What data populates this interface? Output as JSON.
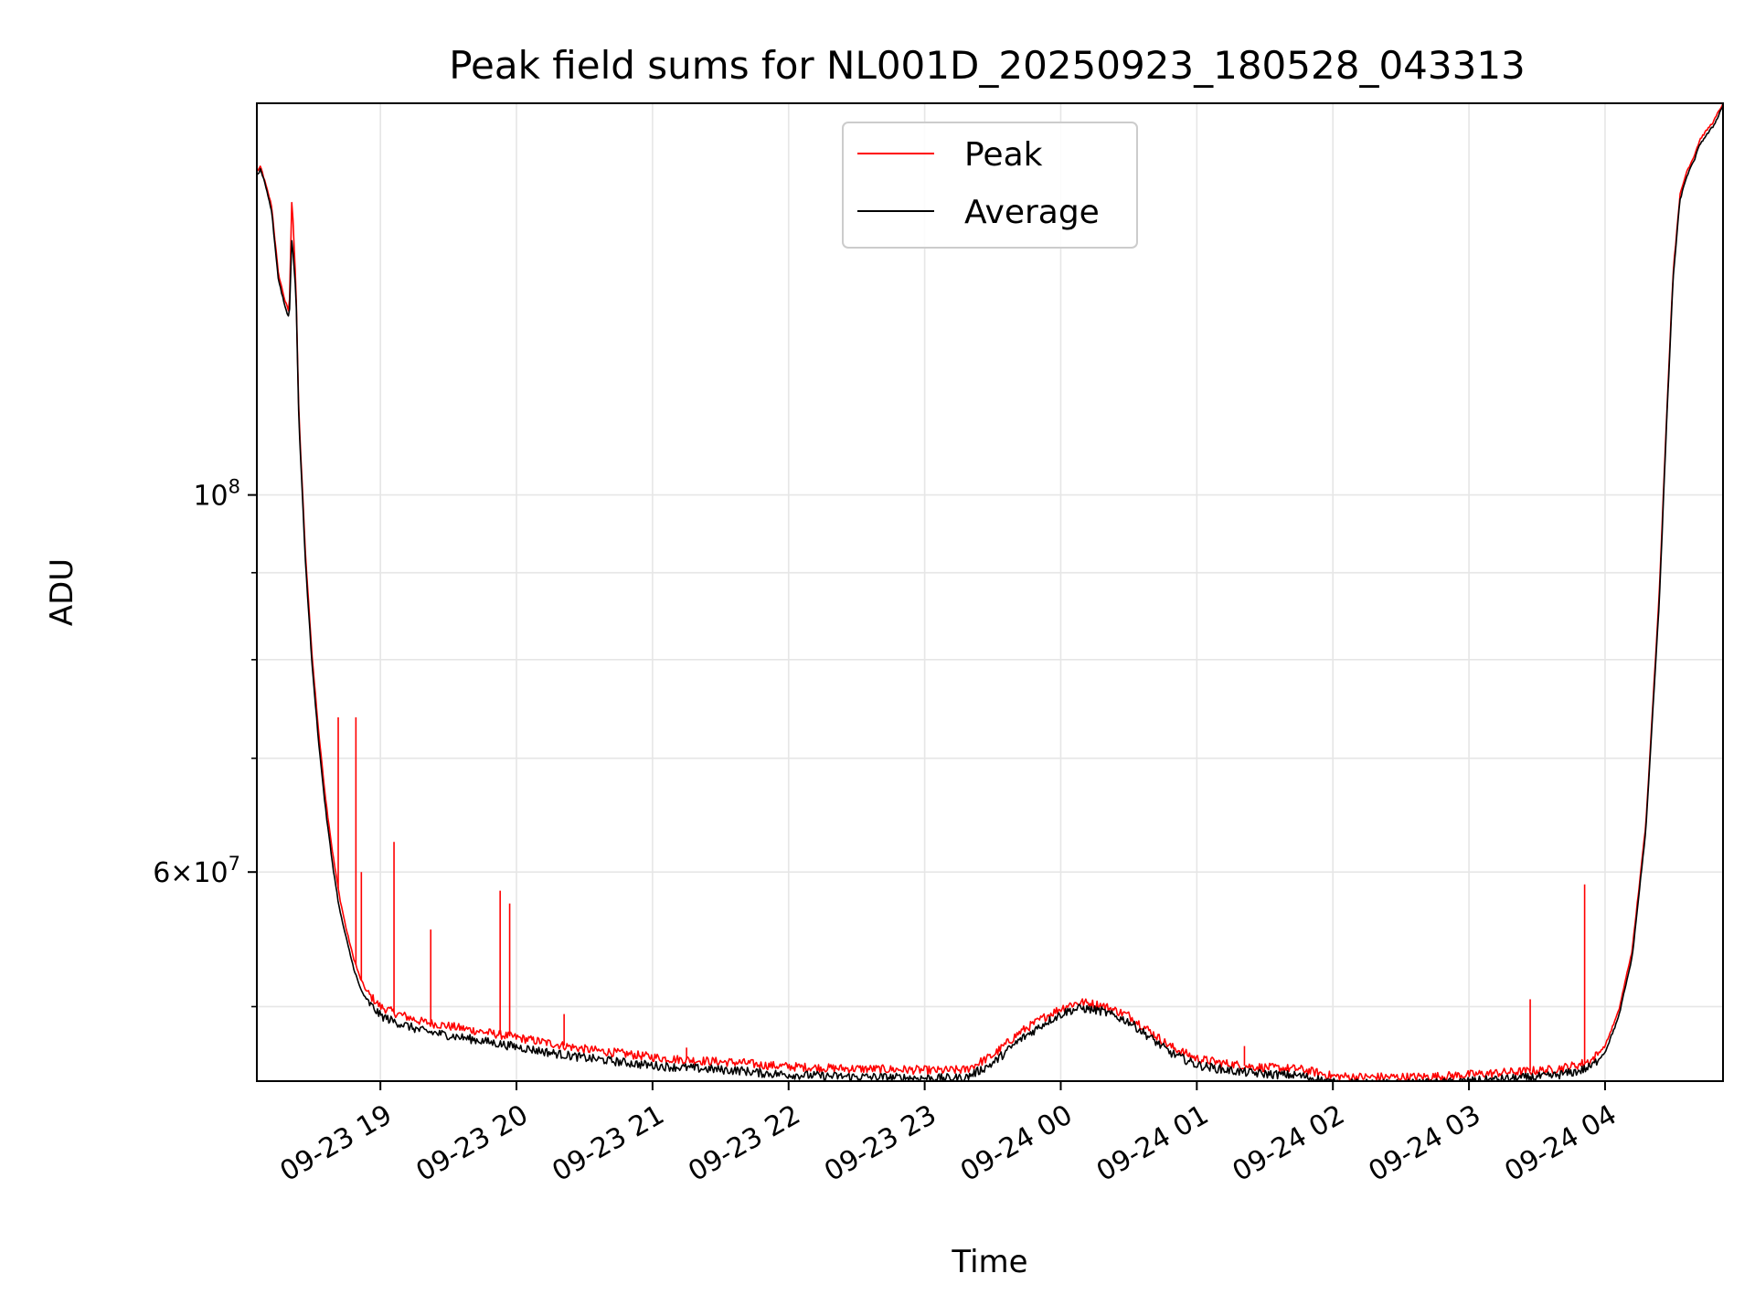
{
  "chart_data": {
    "type": "line",
    "title": "Peak field sums for NL001D_20250923_180528_043313",
    "xlabel": "Time",
    "ylabel": "ADU",
    "yscale": "log",
    "xlim": [
      18.092,
      28.867
    ],
    "ylim": [
      45200000,
      170000000
    ],
    "x_unit": "hours since 2025-09-23 00:00",
    "x_ticks": [
      {
        "value": 19,
        "label": "09-23 19"
      },
      {
        "value": 20,
        "label": "09-23 20"
      },
      {
        "value": 21,
        "label": "09-23 21"
      },
      {
        "value": 22,
        "label": "09-23 22"
      },
      {
        "value": 23,
        "label": "09-23 23"
      },
      {
        "value": 24,
        "label": "09-24 00"
      },
      {
        "value": 25,
        "label": "09-24 01"
      },
      {
        "value": 26,
        "label": "09-24 02"
      },
      {
        "value": 27,
        "label": "09-24 03"
      },
      {
        "value": 28,
        "label": "09-24 04"
      }
    ],
    "y_major_ticks": [
      {
        "value": 100000000,
        "base": "10",
        "exp": "8"
      },
      {
        "value": 60000000,
        "coef": "6",
        "base": "10",
        "exp": "7"
      }
    ],
    "y_minor_ticks": [
      50000000,
      70000000,
      80000000,
      90000000
    ],
    "grid": true,
    "legend_position": "upper-center",
    "series": [
      {
        "name": "Peak",
        "color": "#ff0000",
        "x": [
          18.092,
          18.12,
          18.15,
          18.2,
          18.25,
          18.3,
          18.33,
          18.35,
          18.38,
          18.4,
          18.45,
          18.5,
          18.55,
          18.6,
          18.65,
          18.7,
          18.75,
          18.8,
          18.85,
          18.9,
          19.0,
          19.1,
          19.2,
          19.3,
          19.5,
          19.7,
          19.9,
          20.1,
          20.3,
          20.5,
          20.7,
          20.9,
          21.1,
          21.3,
          21.5,
          21.65,
          21.7,
          21.8,
          22.0,
          22.3,
          22.6,
          22.9,
          23.1,
          23.3,
          23.5,
          23.7,
          23.9,
          24.05,
          24.15,
          24.3,
          24.5,
          24.65,
          24.8,
          25.0,
          25.2,
          25.4,
          25.6,
          25.75,
          25.9,
          26.0,
          26.2,
          26.4,
          26.6,
          26.8,
          27.0,
          27.2,
          27.4,
          27.6,
          27.8,
          27.9,
          28.0,
          28.1,
          28.2,
          28.3,
          28.4,
          28.45,
          28.5,
          28.55,
          28.6,
          28.65,
          28.7,
          28.8,
          28.867
        ],
        "values": [
          155000000,
          156000000,
          153000000,
          148000000,
          135000000,
          130000000,
          128000000,
          150000000,
          132000000,
          112000000,
          92000000,
          80000000,
          72000000,
          66000000,
          61500000,
          58000000,
          55500000,
          53500000,
          52000000,
          51000000,
          50000000,
          49600000,
          49300000,
          49000000,
          48700000,
          48400000,
          48100000,
          47800000,
          47500000,
          47200000,
          47000000,
          46800000,
          46600000,
          46500000,
          46400000,
          46350000,
          46300000,
          46200000,
          46100000,
          46000000,
          45950000,
          45900000,
          45850000,
          45900000,
          46800000,
          48300000,
          49400000,
          50100000,
          50300000,
          50100000,
          49400000,
          48400000,
          47400000,
          46600000,
          46300000,
          46100000,
          46000000,
          45950000,
          45700000,
          45500000,
          45450000,
          45450000,
          45450000,
          45500000,
          45600000,
          45700000,
          45800000,
          45900000,
          46200000,
          46500000,
          47400000,
          49700000,
          54000000,
          64000000,
          88000000,
          110000000,
          135000000,
          150000000,
          155000000,
          158000000,
          162000000,
          166000000,
          170000000
        ]
      },
      {
        "name": "Average",
        "color": "#000000",
        "x": [
          18.092,
          18.12,
          18.15,
          18.2,
          18.25,
          18.3,
          18.33,
          18.35,
          18.38,
          18.4,
          18.45,
          18.5,
          18.55,
          18.6,
          18.65,
          18.7,
          18.75,
          18.8,
          18.85,
          18.9,
          19.0,
          19.1,
          19.2,
          19.3,
          19.5,
          19.7,
          19.9,
          20.1,
          20.3,
          20.5,
          20.7,
          20.9,
          21.1,
          21.3,
          21.5,
          21.65,
          21.7,
          21.8,
          22.0,
          22.3,
          22.6,
          22.9,
          23.1,
          23.3,
          23.5,
          23.7,
          23.9,
          24.05,
          24.15,
          24.3,
          24.5,
          24.65,
          24.8,
          25.0,
          25.2,
          25.4,
          25.6,
          25.75,
          25.9,
          26.0,
          26.2,
          26.4,
          26.6,
          26.8,
          27.0,
          27.2,
          27.4,
          27.6,
          27.8,
          27.9,
          28.0,
          28.1,
          28.2,
          28.3,
          28.4,
          28.45,
          28.5,
          28.55,
          28.6,
          28.65,
          28.7,
          28.8,
          28.867
        ],
        "values": [
          154000000,
          155500000,
          152500000,
          147000000,
          134000000,
          129000000,
          127000000,
          142000000,
          131000000,
          111000000,
          91000000,
          79000000,
          71000000,
          65000000,
          60500000,
          57000000,
          54800000,
          52800000,
          51300000,
          50400000,
          49400000,
          49000000,
          48700000,
          48400000,
          48100000,
          47800000,
          47500000,
          47200000,
          46900000,
          46650000,
          46450000,
          46250000,
          46100000,
          46000000,
          45900000,
          45850000,
          45800000,
          45700000,
          45600000,
          45500000,
          45450000,
          45400000,
          45380000,
          45400000,
          46300000,
          47800000,
          49000000,
          49700000,
          49900000,
          49700000,
          49000000,
          48000000,
          47000000,
          46200000,
          45900000,
          45700000,
          45600000,
          45550000,
          45300000,
          45100000,
          45050000,
          45050000,
          45050000,
          45100000,
          45200000,
          45300000,
          45400000,
          45500000,
          45800000,
          46100000,
          47000000,
          49300000,
          53500000,
          63500000,
          87000000,
          109000000,
          134000000,
          149000000,
          154000000,
          157000000,
          161000000,
          165000000,
          169500000
        ]
      }
    ],
    "spikes": [
      {
        "x": 18.69,
        "value": 74000000
      },
      {
        "x": 18.82,
        "value": 74000000
      },
      {
        "x": 18.86,
        "value": 60000000
      },
      {
        "x": 19.1,
        "value": 62500000
      },
      {
        "x": 19.37,
        "value": 55500000
      },
      {
        "x": 19.88,
        "value": 58500000
      },
      {
        "x": 19.95,
        "value": 57500000
      },
      {
        "x": 20.35,
        "value": 49500000
      },
      {
        "x": 21.25,
        "value": 47300000
      },
      {
        "x": 25.35,
        "value": 47400000
      },
      {
        "x": 27.45,
        "value": 50500000
      },
      {
        "x": 27.85,
        "value": 59000000
      }
    ]
  }
}
